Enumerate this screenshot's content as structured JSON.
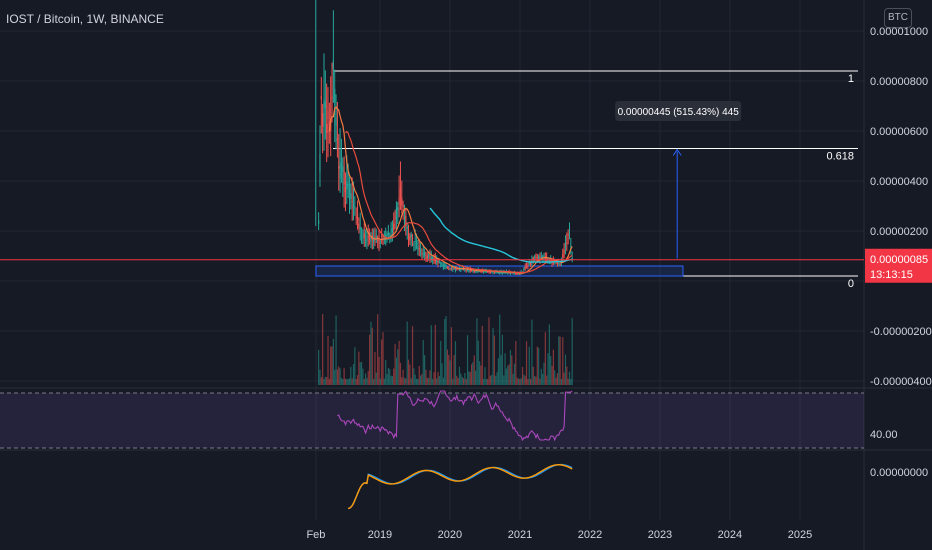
{
  "header": {
    "symbol_title": "IOST / Bitcoin, 1W, BINANCE",
    "scale_badge": "BTC"
  },
  "colors": {
    "background": "#161a25",
    "grid": "#232734",
    "up_candle": "#26a69a",
    "down_candle": "#ef5350",
    "price_line": "#f23645",
    "ma_orange": "#f57c43",
    "ma_red": "#e84b3c",
    "ma_teal": "#26c6da",
    "rsi": "#ab47bc",
    "macd_blue": "#2196f3",
    "signal_orange": "#ff9800",
    "fib_line": "#ffffff",
    "measure": "#2962ff"
  },
  "chart_data": [
    {
      "type": "line",
      "panel": "price",
      "title": "IOST / Bitcoin, 1W, BINANCE",
      "y_unit": "BTC",
      "y_ticks": [
        "0.00001000",
        "0.00000800",
        "0.00000600",
        "0.00000400",
        "0.00000200",
        "-0.00000200",
        "-0.00000400"
      ],
      "x_ticks": [
        "Feb",
        "2019",
        "2020",
        "2021",
        "2022",
        "2023",
        "2024",
        "2025"
      ],
      "ylim": [
        -4.7e-06,
        1.05e-05
      ],
      "x": [
        "2018-02-15",
        "2018-03-01",
        "2018-04-15",
        "2018-05-01",
        "2018-06-01",
        "2018-08-01",
        "2018-10-01",
        "2019-01-01",
        "2019-03-15",
        "2019-04-15",
        "2019-06-01",
        "2019-09-01",
        "2020-01-01",
        "2020-06-01",
        "2021-01-01",
        "2021-04-01",
        "2021-06-01",
        "2021-08-01",
        "2021-09-15",
        "2021-10-01"
      ],
      "series": [
        {
          "values": [
            2.4e-06,
            7e-06,
            6e-06,
            8.5e-06,
            4.5e-06,
            3.5e-06,
            1.8e-06,
            1.6e-06,
            2.1e-06,
            3.5e-06,
            1.8e-06,
            1e-06,
            5e-07,
            4e-07,
            3e-07,
            1e-06,
            8e-07,
            7e-07,
            2e-06,
            8e-07
          ]
        }
      ],
      "current_price": "0.00000085",
      "countdown": "13:13:15",
      "fibonacci": [
        {
          "level": "1",
          "value": 8.4e-06
        },
        {
          "level": "0.618",
          "value": 5.3e-06
        },
        {
          "level": "0",
          "value": 2e-07
        }
      ],
      "measure_label": "0.00000445 (515.43%) 445"
    },
    {
      "type": "bar",
      "panel": "volume",
      "x_range": [
        "2018-02",
        "2021-10"
      ]
    },
    {
      "type": "line",
      "panel": "rsi",
      "y_ticks": [
        "40.00"
      ]
    },
    {
      "type": "line",
      "panel": "macd",
      "y_ticks": [
        "0.00000000"
      ]
    }
  ]
}
